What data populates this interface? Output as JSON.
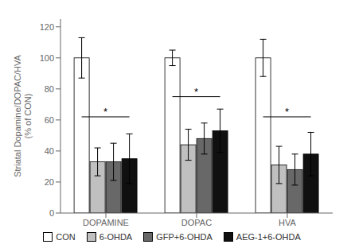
{
  "chart_data": {
    "type": "bar",
    "categories": [
      "DOPAMINE",
      "DOPAC",
      "HVA"
    ],
    "series": [
      {
        "name": "CON",
        "color": "#ffffff",
        "values": [
          100,
          100,
          100
        ],
        "errors": [
          13,
          5,
          12
        ]
      },
      {
        "name": "6-OHDA",
        "color": "#c0c0c0",
        "values": [
          33,
          44,
          31
        ],
        "errors": [
          9,
          10,
          12
        ]
      },
      {
        "name": "GFP+6-OHDA",
        "color": "#686868",
        "values": [
          33,
          48,
          28
        ],
        "errors": [
          12,
          10,
          10
        ]
      },
      {
        "name": "AEG-1+6-OHDA",
        "color": "#101010",
        "values": [
          35,
          53,
          38
        ],
        "errors": [
          16,
          14,
          14
        ]
      }
    ],
    "ylabel": "Striatal Dopamine/DOPAC/HVA\n(% of CON)",
    "ylim": [
      0,
      125
    ],
    "yticks": [
      0,
      20,
      40,
      60,
      80,
      100,
      120
    ],
    "grid": false,
    "legend": "bottom",
    "annotations": [
      {
        "text": "*",
        "category": "DOPAMINE",
        "y": 62,
        "from": "CON",
        "to": "AEG-1+6-OHDA"
      },
      {
        "text": "*",
        "category": "DOPAC",
        "y": 75,
        "from": "CON",
        "to": "AEG-1+6-OHDA"
      },
      {
        "text": "*",
        "category": "HVA",
        "y": 62,
        "from": "CON",
        "to": "AEG-1+6-OHDA"
      }
    ]
  }
}
